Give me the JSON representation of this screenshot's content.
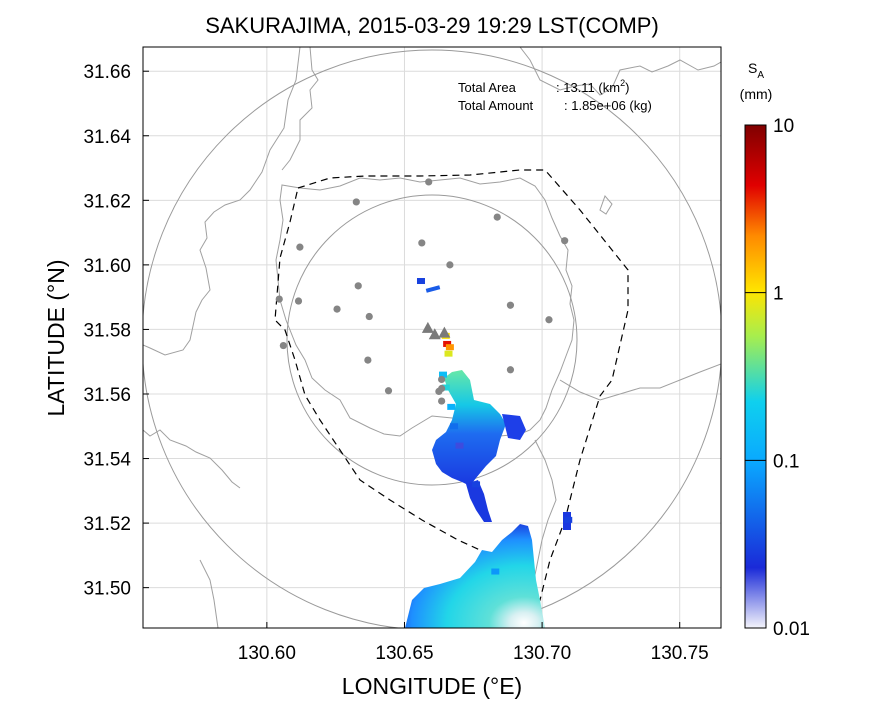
{
  "chart_data": {
    "type": "heatmap",
    "title": "SAKURAJIMA, 2015-03-29 19:29 LST(COMP)",
    "xlabel": "LONGITUDE (°E)",
    "ylabel": "LATITUDE (°N)",
    "xlim": [
      130.555,
      130.765
    ],
    "ylim": [
      31.4875,
      31.6675
    ],
    "xticks": [
      "130.60",
      "130.65",
      "130.70",
      "130.75"
    ],
    "xtick_values": [
      130.6,
      130.65,
      130.7,
      130.75
    ],
    "yticks": [
      "31.50",
      "31.52",
      "31.54",
      "31.56",
      "31.58",
      "31.60",
      "31.62",
      "31.64",
      "31.66"
    ],
    "ytick_values": [
      31.5,
      31.52,
      31.54,
      31.56,
      31.58,
      31.6,
      31.62,
      31.64,
      31.66
    ],
    "grid": true,
    "info": {
      "area_label": "Total Area",
      "area_value": ": 13.11 (km",
      "area_sup": "2",
      "area_close": ")",
      "amount_label": "Total Amount",
      "amount_value": ": 1.85e+06 (kg)"
    },
    "colorbar": {
      "label_s": "S",
      "label_sub": "A",
      "unit": "(mm)",
      "scale": "log",
      "range": [
        0.01,
        10
      ],
      "ticks": [
        "10",
        "1",
        "0.1",
        "0.01"
      ],
      "tick_values": [
        10,
        1,
        0.1,
        0.01
      ],
      "colors": [
        "#f4f4fb",
        "#1a2ad8",
        "#0fd0ee",
        "#b9f04a",
        "#ffd000",
        "#ff6a00",
        "#e00000",
        "#800000"
      ]
    },
    "stations": [
      [
        130.6045,
        31.5894
      ],
      [
        130.612,
        31.6055
      ],
      [
        130.6115,
        31.5888
      ],
      [
        130.606,
        31.575
      ],
      [
        130.6255,
        31.5863
      ],
      [
        130.6325,
        31.6195
      ],
      [
        130.6332,
        31.5935
      ],
      [
        130.6372,
        31.584
      ],
      [
        130.6442,
        31.561
      ],
      [
        130.6367,
        31.5705
      ],
      [
        130.6563,
        31.6068
      ],
      [
        130.6588,
        31.6257
      ],
      [
        130.6635,
        31.5645
      ],
      [
        130.6635,
        31.5578
      ],
      [
        130.6635,
        31.5617
      ],
      [
        130.6665,
        31.6
      ],
      [
        130.6837,
        31.6148
      ],
      [
        130.6885,
        31.5875
      ],
      [
        130.6885,
        31.5675
      ],
      [
        130.7025,
        31.583
      ],
      [
        130.7082,
        31.6075
      ],
      [
        130.6625,
        31.5608
      ]
    ],
    "vents": [
      [
        130.6585,
        31.5805
      ],
      [
        130.661,
        31.5785
      ],
      [
        130.6645,
        31.579
      ]
    ],
    "deposit_cells": [
      {
        "lon": 130.656,
        "lat": 31.595,
        "value": 0.03
      },
      {
        "lon": 130.665,
        "lat": 31.578,
        "value": 1.0
      },
      {
        "lon": 130.6655,
        "lat": 31.5755,
        "value": 4.0
      },
      {
        "lon": 130.6665,
        "lat": 31.5745,
        "value": 2.0
      },
      {
        "lon": 130.666,
        "lat": 31.5725,
        "value": 0.8
      },
      {
        "lon": 130.664,
        "lat": 31.566,
        "value": 0.15
      },
      {
        "lon": 130.665,
        "lat": 31.562,
        "value": 0.25
      },
      {
        "lon": 130.667,
        "lat": 31.556,
        "value": 0.12
      },
      {
        "lon": 130.668,
        "lat": 31.55,
        "value": 0.05
      },
      {
        "lon": 130.67,
        "lat": 31.544,
        "value": 0.02
      },
      {
        "lon": 130.676,
        "lat": 31.532,
        "value": 0.03
      },
      {
        "lon": 130.7095,
        "lat": 31.521,
        "value": 0.03
      },
      {
        "lon": 130.683,
        "lat": 31.505,
        "value": 0.08
      }
    ]
  }
}
